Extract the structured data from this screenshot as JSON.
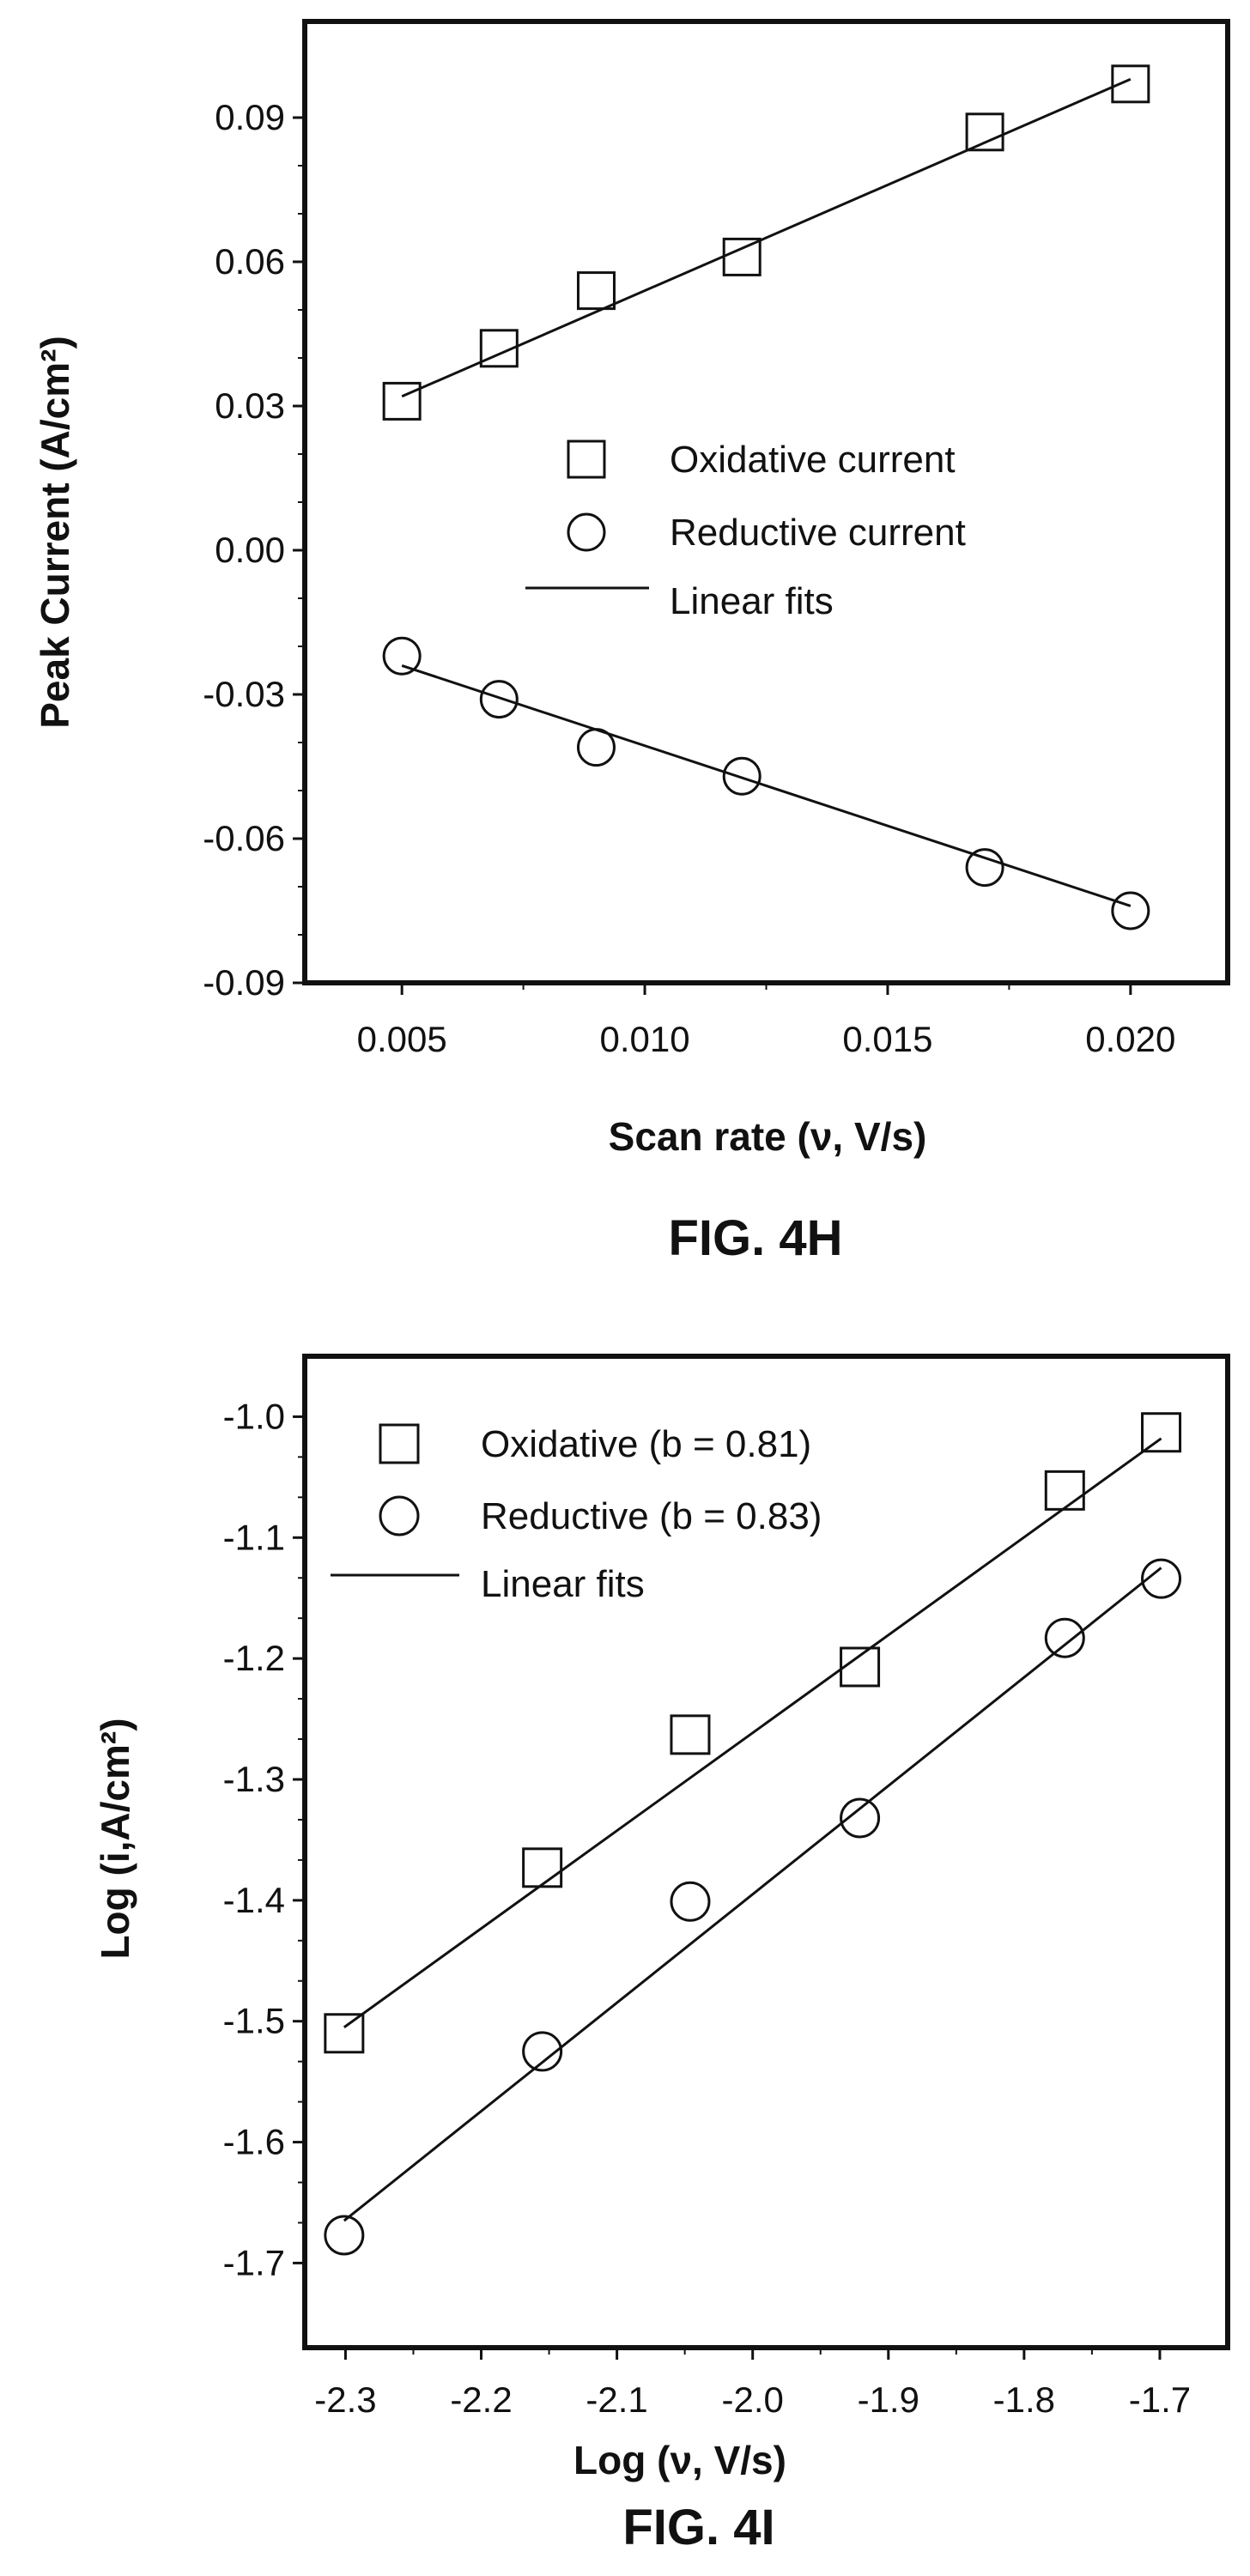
{
  "chart_data": [
    {
      "type": "scatter",
      "xlabel": "Scan rate (ν, V/s)",
      "ylabel": "Peak Current (A/cm²)",
      "caption": "FIG. 4H",
      "xlim": [
        0.003,
        0.022
      ],
      "ylim": [
        -0.09,
        0.11
      ],
      "xticks": [
        0.005,
        0.01,
        0.015,
        0.02
      ],
      "xtick_labels": [
        "0.005",
        "0.010",
        "0.015",
        "0.020"
      ],
      "yticks": [
        -0.09,
        -0.06,
        -0.03,
        0.0,
        0.03,
        0.06,
        0.09
      ],
      "ytick_labels": [
        "-0.09",
        "-0.06",
        "-0.03",
        "0.00",
        "0.03",
        "0.06",
        "0.09"
      ],
      "legend_position": "center-right",
      "fit_label": "Linear fits",
      "series": [
        {
          "name": "Oxidative current",
          "marker": "square",
          "x": [
            0.005,
            0.007,
            0.009,
            0.012,
            0.017,
            0.02
          ],
          "y": [
            0.031,
            0.042,
            0.054,
            0.061,
            0.087,
            0.097
          ],
          "fit": {
            "x": [
              0.005,
              0.02
            ],
            "y": [
              0.032,
              0.098
            ]
          }
        },
        {
          "name": "Reductive current",
          "marker": "circle",
          "x": [
            0.005,
            0.007,
            0.009,
            0.012,
            0.017,
            0.02
          ],
          "y": [
            -0.022,
            -0.031,
            -0.041,
            -0.047,
            -0.066,
            -0.075
          ],
          "fit": {
            "x": [
              0.005,
              0.02
            ],
            "y": [
              -0.024,
              -0.074
            ]
          }
        }
      ]
    },
    {
      "type": "scatter",
      "xlabel": "Log (ν, V/s)",
      "ylabel": "Log (i,A/cm²)",
      "caption": "FIG. 4I",
      "xlim": [
        -2.33,
        -1.65
      ],
      "ylim": [
        -1.77,
        -0.95
      ],
      "xticks": [
        -2.3,
        -2.2,
        -2.1,
        -2.0,
        -1.9,
        -1.8,
        -1.7
      ],
      "xtick_labels": [
        "-2.3",
        "-2.2",
        "-2.1",
        "-2.0",
        "-1.9",
        "-1.8",
        "-1.7"
      ],
      "yticks": [
        -1.7,
        -1.6,
        -1.5,
        -1.4,
        -1.3,
        -1.2,
        -1.1,
        -1.0
      ],
      "ytick_labels": [
        "-1.7",
        "-1.6",
        "-1.5",
        "-1.4",
        "-1.3",
        "-1.2",
        "-1.1",
        "-1.0"
      ],
      "legend_position": "top-left",
      "fit_label": "Linear fits",
      "series": [
        {
          "name": "Oxidative (b = 0.81)",
          "marker": "square",
          "x": [
            -2.301,
            -2.155,
            -2.046,
            -1.921,
            -1.77,
            -1.699
          ],
          "y": [
            -1.51,
            -1.373,
            -1.263,
            -1.207,
            -1.061,
            -1.013
          ],
          "fit": {
            "x": [
              -2.301,
              -1.699
            ],
            "y": [
              -1.505,
              -1.018
            ]
          }
        },
        {
          "name": "Reductive (b = 0.83)",
          "marker": "circle",
          "x": [
            -2.301,
            -2.155,
            -2.046,
            -1.921,
            -1.77,
            -1.699
          ],
          "y": [
            -1.677,
            -1.525,
            -1.401,
            -1.332,
            -1.183,
            -1.134
          ],
          "fit": {
            "x": [
              -2.301,
              -1.699
            ],
            "y": [
              -1.665,
              -1.125
            ]
          }
        }
      ]
    }
  ]
}
